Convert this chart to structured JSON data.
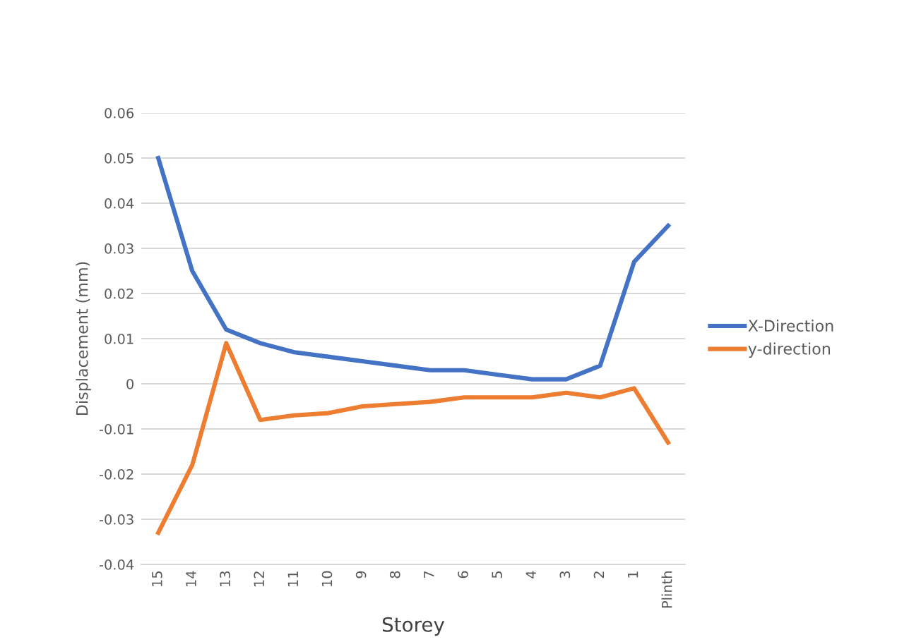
{
  "chart_data": {
    "type": "line",
    "xlabel": "Storey",
    "ylabel": "Displacement (mm)",
    "categories": [
      "15",
      "14",
      "13",
      "12",
      "11",
      "10",
      "9",
      "8",
      "7",
      "6",
      "5",
      "4",
      "3",
      "2",
      "1",
      "Plinth"
    ],
    "series": [
      {
        "name": "X-Direction",
        "color": "#4472c4",
        "values": [
          0.05,
          0.025,
          0.012,
          0.009,
          0.007,
          0.006,
          0.005,
          0.004,
          0.003,
          0.003,
          0.002,
          0.001,
          0.001,
          0.004,
          0.027,
          0.035
        ]
      },
      {
        "name": "y-direction",
        "color": "#ed7d31",
        "values": [
          -0.033,
          -0.018,
          0.009,
          -0.008,
          -0.007,
          -0.0065,
          -0.005,
          -0.0045,
          -0.004,
          -0.003,
          -0.003,
          -0.003,
          -0.002,
          -0.003,
          -0.001,
          -0.013
        ]
      }
    ],
    "ylim": [
      -0.04,
      0.06
    ],
    "yticks": [
      {
        "value": -0.04,
        "label": "-0.04"
      },
      {
        "value": -0.03,
        "label": "-0.03"
      },
      {
        "value": -0.02,
        "label": "-0.02"
      },
      {
        "value": -0.01,
        "label": "-0.01"
      },
      0,
      {
        "value": 0.01,
        "label": "0.01"
      },
      {
        "value": 0.02,
        "label": "0.02"
      },
      {
        "value": 0.03,
        "label": "0.03"
      },
      {
        "value": 0.04,
        "label": "0.04"
      },
      {
        "value": 0.05,
        "label": "0.05"
      },
      {
        "value": 0.06,
        "label": "0.06"
      }
    ],
    "grid": "y",
    "legend": "right",
    "marker": "none",
    "line_style": "solid"
  }
}
